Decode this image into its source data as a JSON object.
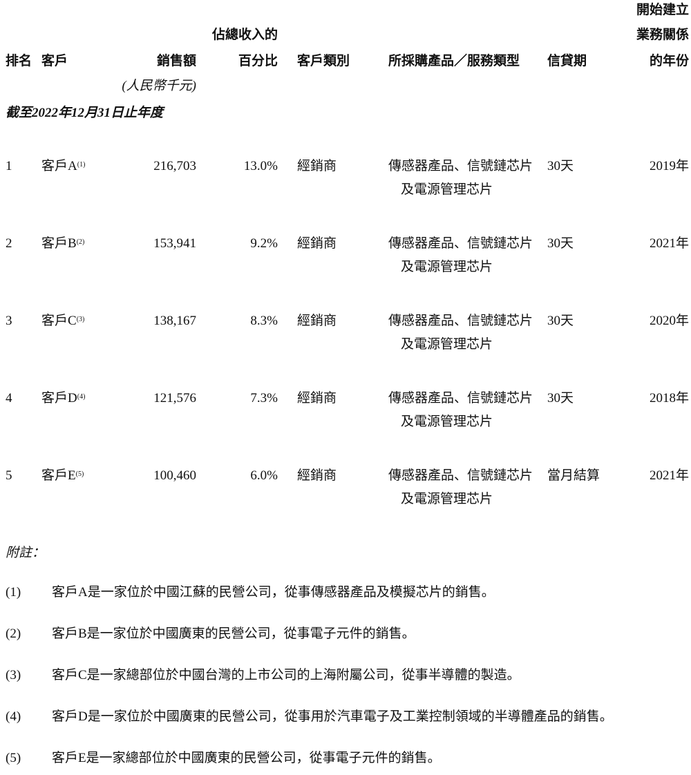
{
  "header": {
    "rank": "排名",
    "customer": "客戶",
    "sales": "銷售額",
    "sales_unit": "(人民幣千元)",
    "pct_line1": "佔總收入的",
    "pct_line2": "百分比",
    "customer_type": "客戶類別",
    "product": "所採購產品／服務類型",
    "credit": "信貸期",
    "year_line1": "開始建立",
    "year_line2": "業務關係",
    "year_line3": "的年份"
  },
  "period": "截至2022年12月31日止年度",
  "rows": [
    {
      "rank": "1",
      "customer": "客戶A",
      "note": "(1)",
      "sales": "216,703",
      "pct": "13.0%",
      "type": "經銷商",
      "product1": "傳感器產品、信號鏈芯片",
      "product2": "及電源管理芯片",
      "credit": "30天",
      "year": "2019年"
    },
    {
      "rank": "2",
      "customer": "客戶B",
      "note": "(2)",
      "sales": "153,941",
      "pct": "9.2%",
      "type": "經銷商",
      "product1": "傳感器產品、信號鏈芯片",
      "product2": "及電源管理芯片",
      "credit": "30天",
      "year": "2021年"
    },
    {
      "rank": "3",
      "customer": "客戶C",
      "note": "(3)",
      "sales": "138,167",
      "pct": "8.3%",
      "type": "經銷商",
      "product1": "傳感器產品、信號鏈芯片",
      "product2": "及電源管理芯片",
      "credit": "30天",
      "year": "2020年"
    },
    {
      "rank": "4",
      "customer": "客戶D",
      "note": "(4)",
      "sales": "121,576",
      "pct": "7.3%",
      "type": "經銷商",
      "product1": "傳感器產品、信號鏈芯片",
      "product2": "及電源管理芯片",
      "credit": "30天",
      "year": "2018年"
    },
    {
      "rank": "5",
      "customer": "客戶E",
      "note": "(5)",
      "sales": "100,460",
      "pct": "6.0%",
      "type": "經銷商",
      "product1": "傳感器產品、信號鏈芯片",
      "product2": "及電源管理芯片",
      "credit": "當月結算",
      "year": "2021年"
    }
  ],
  "notes_title": "附註：",
  "notes": [
    {
      "num": "(1)",
      "text": "客戶A是一家位於中國江蘇的民營公司，從事傳感器產品及模擬芯片的銷售。"
    },
    {
      "num": "(2)",
      "text": "客戶B是一家位於中國廣東的民營公司，從事電子元件的銷售。"
    },
    {
      "num": "(3)",
      "text": "客戶C是一家總部位於中國台灣的上市公司的上海附屬公司，從事半導體的製造。"
    },
    {
      "num": "(4)",
      "text": "客戶D是一家位於中國廣東的民營公司，從事用於汽車電子及工業控制領域的半導體產品的銷售。"
    },
    {
      "num": "(5)",
      "text": "客戶E是一家總部位於中國廣東的民營公司，從事電子元件的銷售。"
    }
  ]
}
